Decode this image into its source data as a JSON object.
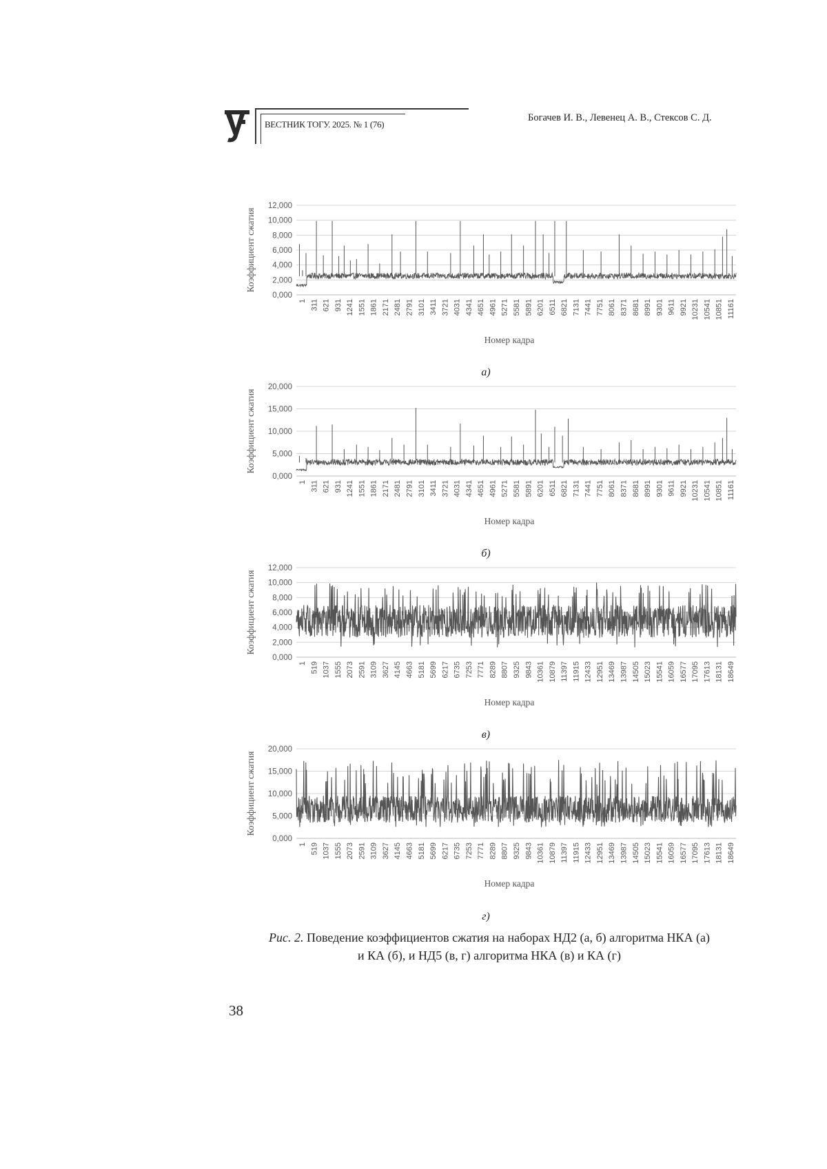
{
  "header": {
    "journal": "ВЕСТНИК ТОГУ. 2025. № 1 (76)",
    "authors": "Богачев И. В., Левенец А. В., Стексов С. Д."
  },
  "caption": {
    "prefix": "Рис. 2.",
    "line1": " Поведение коэффициентов сжатия на наборах НД2 (а, б) алгоритма НКА (а)",
    "line2": "и КА (б), и НД5 (в, г) алгоритма НКА (в) и КА (г)"
  },
  "page_number": "38",
  "chart_data": [
    {
      "type": "line",
      "panel": "а)",
      "xlabel": "Номер кадра",
      "ylabel": "Коэффициент сжатия",
      "ylim": [
        0,
        12
      ],
      "yticks": [
        "0,000",
        "2,000",
        "4,000",
        "6,000",
        "8,000",
        "10,000",
        "12,000"
      ],
      "xticks": [
        "1",
        "311",
        "621",
        "931",
        "1241",
        "1551",
        "1861",
        "2171",
        "2481",
        "2791",
        "3101",
        "3411",
        "3721",
        "4031",
        "4341",
        "4651",
        "4961",
        "5271",
        "5581",
        "5891",
        "6201",
        "6511",
        "6821",
        "7131",
        "7441",
        "7751",
        "8061",
        "8371",
        "8681",
        "8991",
        "9301",
        "9611",
        "9921",
        "10231",
        "10541",
        "10851",
        "11161"
      ],
      "x_max": 11400,
      "grid": true,
      "series": [
        {
          "base": 2.5,
          "noise": 0.4,
          "start_low": 1.1,
          "start_len": 270,
          "dip_at": 6800,
          "dip_val": 1.5,
          "spikes": [
            [
              80,
              6.8
            ],
            [
              160,
              3.3
            ],
            [
              250,
              5.6
            ],
            [
              520,
              9.9
            ],
            [
              700,
              5.3
            ],
            [
              930,
              9.9
            ],
            [
              1100,
              5.2
            ],
            [
              1240,
              6.6
            ],
            [
              1400,
              4.6
            ],
            [
              1560,
              4.8
            ],
            [
              1860,
              6.8
            ],
            [
              2160,
              4.2
            ],
            [
              2480,
              8.1
            ],
            [
              2700,
              5.8
            ],
            [
              3100,
              9.9
            ],
            [
              3400,
              5.8
            ],
            [
              4000,
              5.6
            ],
            [
              4250,
              9.9
            ],
            [
              4600,
              6.6
            ],
            [
              4850,
              8.1
            ],
            [
              5000,
              5.4
            ],
            [
              5300,
              5.8
            ],
            [
              5580,
              8.1
            ],
            [
              5890,
              6.6
            ],
            [
              6200,
              9.9
            ],
            [
              6400,
              8.1
            ],
            [
              6550,
              5.6
            ],
            [
              6700,
              9.9
            ],
            [
              7000,
              9.9
            ],
            [
              7440,
              6.0
            ],
            [
              7900,
              5.8
            ],
            [
              8370,
              8.1
            ],
            [
              8680,
              6.6
            ],
            [
              8990,
              5.5
            ],
            [
              9300,
              5.8
            ],
            [
              9610,
              5.4
            ],
            [
              9920,
              6.0
            ],
            [
              10230,
              5.4
            ],
            [
              10540,
              5.8
            ],
            [
              10850,
              6.1
            ],
            [
              11050,
              7.8
            ],
            [
              11161,
              8.8
            ],
            [
              11300,
              5.2
            ]
          ]
        }
      ]
    },
    {
      "type": "line",
      "panel": "б)",
      "xlabel": "Номер кадра",
      "ylabel": "Коэффициент сжатия",
      "ylim": [
        0,
        20
      ],
      "yticks": [
        "0,000",
        "5,000",
        "10,000",
        "15,000",
        "20,000"
      ],
      "xticks": [
        "1",
        "311",
        "621",
        "931",
        "1241",
        "1551",
        "1861",
        "2171",
        "2481",
        "2791",
        "3101",
        "3411",
        "3721",
        "4031",
        "4341",
        "4651",
        "4961",
        "5271",
        "5581",
        "5891",
        "6201",
        "6511",
        "6821",
        "7131",
        "7441",
        "7751",
        "8061",
        "8371",
        "8681",
        "8991",
        "9301",
        "9611",
        "9921",
        "10231",
        "10541",
        "10851",
        "11161"
      ],
      "x_max": 11400,
      "grid": true,
      "series": [
        {
          "base": 3.0,
          "noise": 0.7,
          "start_low": 1.2,
          "start_len": 270,
          "dip_at": 6800,
          "dip_val": 1.8,
          "spikes": [
            [
              80,
              4.5
            ],
            [
              250,
              4.0
            ],
            [
              520,
              11.2
            ],
            [
              930,
              11.5
            ],
            [
              1240,
              6.0
            ],
            [
              1560,
              7.0
            ],
            [
              1860,
              6.5
            ],
            [
              2160,
              5.8
            ],
            [
              2480,
              8.5
            ],
            [
              2790,
              7.0
            ],
            [
              3100,
              15.2
            ],
            [
              3400,
              7.0
            ],
            [
              4000,
              6.5
            ],
            [
              4250,
              11.7
            ],
            [
              4600,
              6.8
            ],
            [
              4850,
              9.0
            ],
            [
              5300,
              6.5
            ],
            [
              5580,
              8.8
            ],
            [
              5890,
              7.0
            ],
            [
              6200,
              14.8
            ],
            [
              6350,
              9.5
            ],
            [
              6550,
              6.5
            ],
            [
              6700,
              11.0
            ],
            [
              6900,
              9.0
            ],
            [
              7050,
              12.8
            ],
            [
              7440,
              6.5
            ],
            [
              7900,
              6.0
            ],
            [
              8370,
              7.5
            ],
            [
              8680,
              8.0
            ],
            [
              8990,
              6.0
            ],
            [
              9300,
              6.5
            ],
            [
              9610,
              6.2
            ],
            [
              9920,
              7.0
            ],
            [
              10230,
              6.0
            ],
            [
              10540,
              6.5
            ],
            [
              10850,
              7.5
            ],
            [
              11050,
              8.5
            ],
            [
              11161,
              13.0
            ],
            [
              11300,
              6.0
            ]
          ]
        }
      ]
    },
    {
      "type": "line",
      "panel": "в)",
      "xlabel": "Номер кадра",
      "ylabel": "Коэффициент сжатия",
      "ylim": [
        0,
        12
      ],
      "yticks": [
        "0,000",
        "2,000",
        "4,000",
        "6,000",
        "8,000",
        "10,000",
        "12,000"
      ],
      "xticks": [
        "1",
        "519",
        "1037",
        "1555",
        "2073",
        "2591",
        "3109",
        "3627",
        "4145",
        "4663",
        "5181",
        "5699",
        "6217",
        "6735",
        "7253",
        "7771",
        "8289",
        "8807",
        "9325",
        "9843",
        "10361",
        "10879",
        "11397",
        "11915",
        "12433",
        "12951",
        "13469",
        "13987",
        "14505",
        "15023",
        "15541",
        "16059",
        "16577",
        "17095",
        "17613",
        "18131",
        "18649"
      ],
      "x_max": 19100,
      "grid": true,
      "series": [
        {
          "base": 4.8,
          "noise": 2.2,
          "spike_rate": 0.07,
          "spike_max": 10.0,
          "spike_levels": [
            8.0,
            10.0
          ],
          "low_min": 1.3
        }
      ]
    },
    {
      "type": "line",
      "panel": "г)",
      "xlabel": "Номер кадра",
      "ylabel": "Коэффициент сжатия",
      "ylim": [
        0,
        20
      ],
      "yticks": [
        "0,000",
        "5,000",
        "10,000",
        "15,000",
        "20,000"
      ],
      "xticks": [
        "1",
        "519",
        "1037",
        "1555",
        "2073",
        "2591",
        "3109",
        "3627",
        "4145",
        "4663",
        "5181",
        "5699",
        "6217",
        "6735",
        "7253",
        "7771",
        "8289",
        "8807",
        "9325",
        "9843",
        "10361",
        "10879",
        "11397",
        "11915",
        "12433",
        "12951",
        "13469",
        "13987",
        "14505",
        "15023",
        "15541",
        "16059",
        "16577",
        "17095",
        "17613",
        "18131",
        "18649"
      ],
      "x_max": 19100,
      "grid": true,
      "series": [
        {
          "base": 6.5,
          "noise": 3.0,
          "spike_rate": 0.08,
          "spike_max": 17.5,
          "spike_levels": [
            12.0,
            17.5
          ],
          "low_min": 2.5
        }
      ]
    }
  ]
}
